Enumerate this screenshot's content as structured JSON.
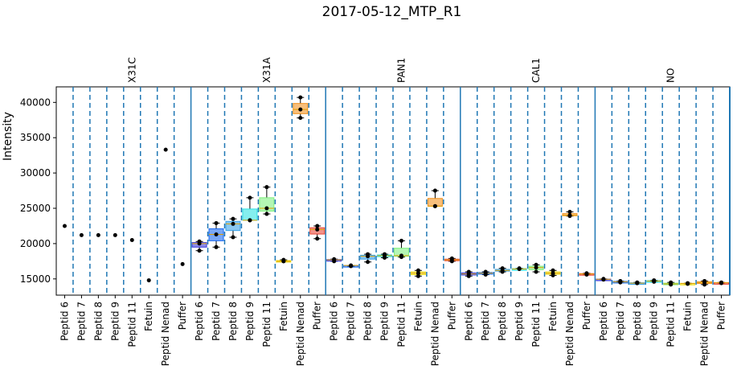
{
  "chart_data": {
    "type": "box",
    "title": "2017-05-12_MTP_R1",
    "xlabel": "",
    "ylabel": "Intensity",
    "ylim": [
      12700,
      42200
    ],
    "yticks": [
      15000,
      20000,
      25000,
      30000,
      35000,
      40000
    ],
    "group_labels": [
      "X31C",
      "X31A",
      "PAN1",
      "CAL1",
      "NO"
    ],
    "categories": [
      "Peptid 6",
      "Peptid 7",
      "Peptid 8",
      "Peptid 9",
      "Peptid 11",
      "Fetuin",
      "Peptid Nenad",
      "Puffer"
    ],
    "category_colors": [
      "#2b2bd9",
      "#0a5ff0",
      "#2a9be8",
      "#1fe0e0",
      "#77ee77",
      "#eedd11",
      "#f08a10",
      "#e83a2a"
    ],
    "groups": [
      {
        "name": "X31C",
        "points": [
          [
            22500
          ],
          [
            21200
          ],
          [
            21200
          ],
          [
            21200
          ],
          [
            20500
          ],
          [
            14800
          ],
          [
            33300
          ],
          [
            17100
          ]
        ]
      },
      {
        "name": "X31A",
        "points": [
          [
            19000,
            20300,
            20000
          ],
          [
            19500,
            22900,
            21300
          ],
          [
            20900,
            23500,
            22800
          ],
          [
            23300,
            26500,
            23300
          ],
          [
            24200,
            28000,
            25000
          ],
          [
            17500,
            17700,
            17500
          ],
          [
            37800,
            40700,
            39000
          ],
          [
            20700,
            22500,
            22000
          ]
        ]
      },
      {
        "name": "PAN1",
        "points": [
          [
            17800,
            17500,
            17700
          ],
          [
            16900,
            16800,
            16900
          ],
          [
            17400,
            18500,
            18200
          ],
          [
            18000,
            18500,
            18300
          ],
          [
            18100,
            20400,
            18300
          ],
          [
            15400,
            16200,
            15800
          ],
          [
            25300,
            27500,
            25300
          ],
          [
            17500,
            17900,
            17700
          ]
        ]
      },
      {
        "name": "CAL1",
        "points": [
          [
            15400,
            16000,
            15700
          ],
          [
            15600,
            16000,
            15800
          ],
          [
            16000,
            16500,
            16200
          ],
          [
            16400,
            16500,
            16400
          ],
          [
            16000,
            17000,
            16600
          ],
          [
            15500,
            16200,
            15800
          ],
          [
            23900,
            24500,
            24000
          ],
          [
            15600,
            15800,
            15700
          ]
        ]
      },
      {
        "name": "NO",
        "points": [
          [
            14900,
            15000,
            14950
          ],
          [
            14500,
            14700,
            14600
          ],
          [
            14400,
            14500,
            14400
          ],
          [
            14600,
            14800,
            14700
          ],
          [
            14200,
            14500,
            14300
          ],
          [
            14300,
            14400,
            14350
          ],
          [
            14200,
            14700,
            14500
          ],
          [
            14400,
            14500,
            14450
          ]
        ]
      }
    ],
    "grid": false
  }
}
